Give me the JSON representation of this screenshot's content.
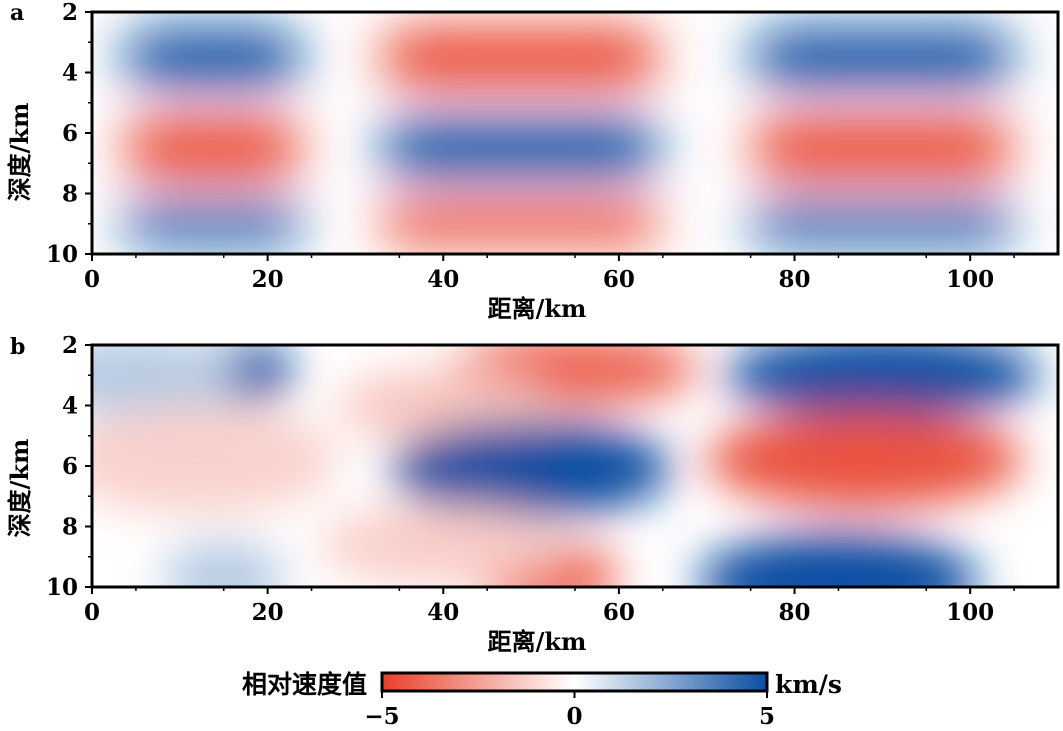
{
  "chart_data": [
    {
      "type": "heatmap",
      "panel_label": "a",
      "xlabel": "距离/km",
      "ylabel": "深度/km",
      "xlim": [
        0,
        110
      ],
      "ylim": [
        10,
        2
      ],
      "xticks": [
        "0",
        "20",
        "40",
        "60",
        "80",
        "100"
      ],
      "yticks": [
        "2",
        "4",
        "6",
        "8",
        "10"
      ],
      "description_pattern": "checkerboard",
      "cells": [
        {
          "x_range": [
            0,
            27.5
          ],
          "y_range": [
            2,
            5
          ],
          "value": 5
        },
        {
          "x_range": [
            27.5,
            70
          ],
          "y_range": [
            2,
            5
          ],
          "value": -5
        },
        {
          "x_range": [
            70,
            110
          ],
          "y_range": [
            2,
            5
          ],
          "value": 5
        },
        {
          "x_range": [
            0,
            27.5
          ],
          "y_range": [
            5,
            8
          ],
          "value": -5
        },
        {
          "x_range": [
            27.5,
            70
          ],
          "y_range": [
            5,
            8
          ],
          "value": 5
        },
        {
          "x_range": [
            70,
            110
          ],
          "y_range": [
            5,
            8
          ],
          "value": -5
        },
        {
          "x_range": [
            0,
            27.5
          ],
          "y_range": [
            8,
            10
          ],
          "value": 5
        },
        {
          "x_range": [
            27.5,
            70
          ],
          "y_range": [
            8,
            10
          ],
          "value": -5
        },
        {
          "x_range": [
            70,
            110
          ],
          "y_range": [
            8,
            10
          ],
          "value": 5
        }
      ]
    },
    {
      "type": "heatmap",
      "panel_label": "b",
      "xlabel": "距离/km",
      "ylabel": "深度/km",
      "xlim": [
        0,
        110
      ],
      "ylim": [
        10,
        2
      ],
      "xticks": [
        "0",
        "20",
        "40",
        "60",
        "80",
        "100"
      ],
      "yticks": [
        "2",
        "4",
        "6",
        "8",
        "10"
      ],
      "anomalies": [
        {
          "x": 17,
          "y": 2.9,
          "rx": 6,
          "ry": 1.0,
          "value": 5
        },
        {
          "x": 5,
          "y": 3.0,
          "rx": 12,
          "ry": 1.3,
          "value": 1.5
        },
        {
          "x": 55,
          "y": 2.8,
          "rx": 14,
          "ry": 1.2,
          "value": -4
        },
        {
          "x": 40,
          "y": 4.0,
          "rx": 12,
          "ry": 1.2,
          "value": -1.5
        },
        {
          "x": 90,
          "y": 3.0,
          "rx": 18,
          "ry": 1.4,
          "value": 5
        },
        {
          "x": 12,
          "y": 5.8,
          "rx": 16,
          "ry": 1.8,
          "value": -1.2
        },
        {
          "x": 50,
          "y": 6.1,
          "rx": 16,
          "ry": 1.6,
          "value": 5
        },
        {
          "x": 88,
          "y": 5.8,
          "rx": 18,
          "ry": 1.6,
          "value": -4.5
        },
        {
          "x": 52,
          "y": 9.7,
          "rx": 8,
          "ry": 1.2,
          "value": -4
        },
        {
          "x": 40,
          "y": 8.6,
          "rx": 14,
          "ry": 1.3,
          "value": -1.3
        },
        {
          "x": 15,
          "y": 9.7,
          "rx": 7,
          "ry": 1.2,
          "value": 1.5
        },
        {
          "x": 85,
          "y": 9.8,
          "rx": 16,
          "ry": 1.6,
          "value": 5
        }
      ]
    }
  ],
  "colorbar": {
    "title": "相对速度值",
    "unit": "km/s",
    "ticks": [
      "−5",
      "0",
      "5"
    ],
    "range": [
      -5,
      5
    ],
    "colors": {
      "negative": "#e8402a",
      "zero": "#ffffff",
      "positive": "#0a4da2"
    }
  }
}
